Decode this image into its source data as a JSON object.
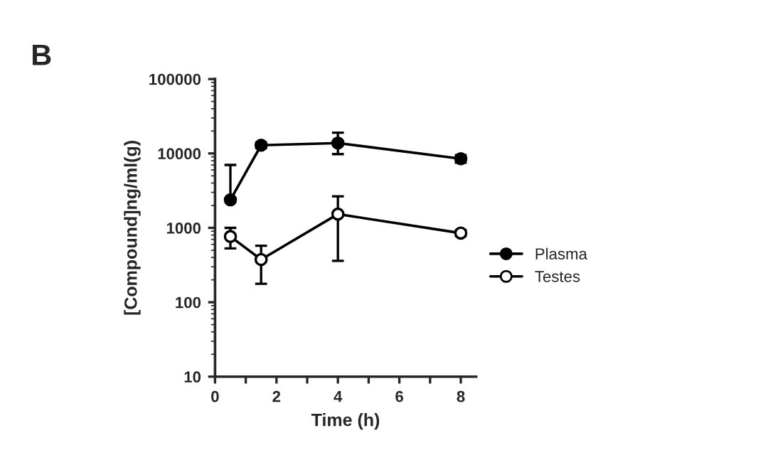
{
  "chart_data": {
    "type": "line",
    "xlabel": "Time (h)",
    "ylabel": "[Compound]ng/ml(g)",
    "annotations": [
      "B"
    ],
    "x": [
      0.5,
      1.5,
      4,
      8
    ],
    "series": [
      {
        "name": "Plasma",
        "color": "#000000",
        "values": [
          2380,
          12900,
          13800,
          8500
        ],
        "errors": [
          [
            2380,
            7000
          ],
          [
            11800,
            14000
          ],
          [
            9800,
            19000
          ],
          [
            7500,
            9500
          ]
        ],
        "marker": "circle"
      },
      {
        "name": "Testes",
        "color": "#000000",
        "values": [
          765,
          375,
          1530,
          850
        ],
        "errors": [
          [
            530,
            1000
          ],
          [
            177,
            575
          ],
          [
            360,
            2650
          ],
          [
            780,
            930
          ]
        ],
        "marker": "circle"
      }
    ],
    "log": "y",
    "xlim": [
      0,
      8.5
    ],
    "xticks": [
      0,
      {
        "value": 1,
        "label": null
      },
      2,
      {
        "value": 3,
        "label": null
      },
      4,
      {
        "value": 5,
        "label": null
      },
      6,
      {
        "value": 7,
        "label": null
      },
      8
    ],
    "ylim": [
      10,
      100000
    ],
    "yticks": [
      10,
      100,
      1000,
      10000,
      100000
    ],
    "grid": false,
    "legend": "right"
  }
}
